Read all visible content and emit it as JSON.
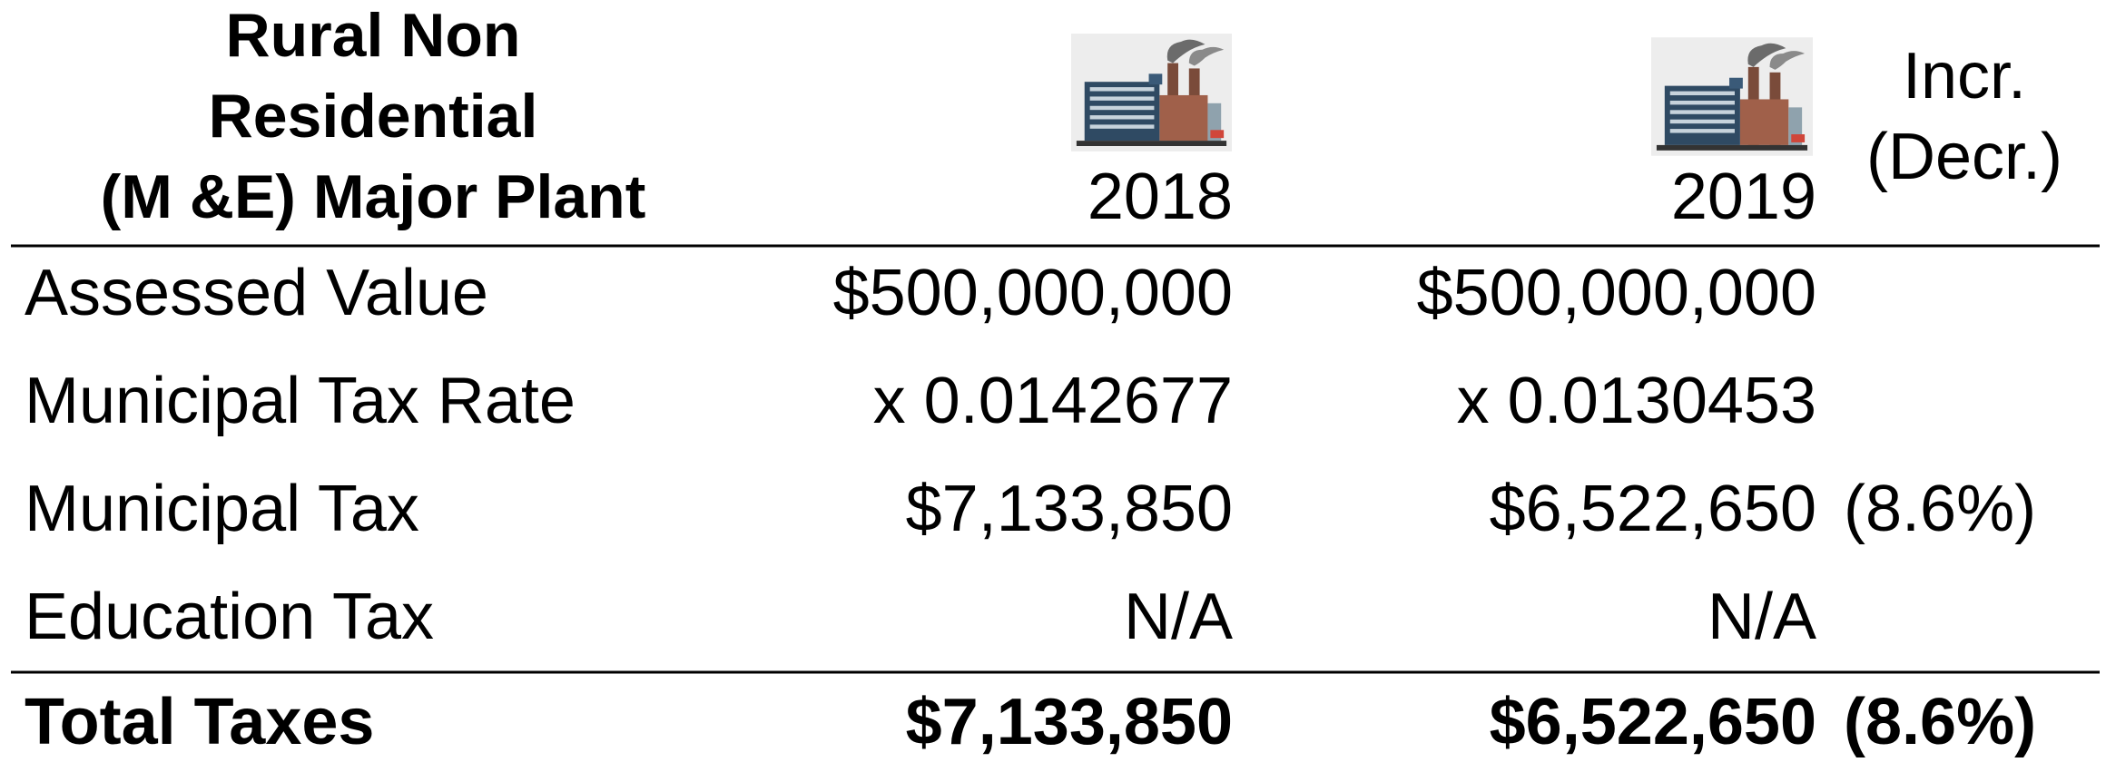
{
  "table": {
    "title_lines": [
      "Rural Non",
      "Residential",
      "(M &E) Major Plant"
    ],
    "years": [
      "2018",
      "2019"
    ],
    "change_header_lines": [
      "Incr.",
      "(Decr.)"
    ],
    "rows": [
      {
        "label": "Assessed Value",
        "values": [
          "$500,000,000",
          "$500,000,000"
        ]
      },
      {
        "label": "Municipal Tax Rate",
        "values": [
          "x 0.0142677",
          "x 0.0130453"
        ]
      },
      {
        "label": "Municipal Tax",
        "values": [
          "$7,133,850",
          "$6,522,650"
        ],
        "change": "(8.6%)"
      },
      {
        "label": "Education Tax",
        "values": [
          "N/A",
          "N/A"
        ]
      }
    ],
    "total": {
      "label": "Total Taxes",
      "values": [
        "$7,133,850",
        "$6,522,650"
      ],
      "change": "(8.6%)"
    }
  }
}
